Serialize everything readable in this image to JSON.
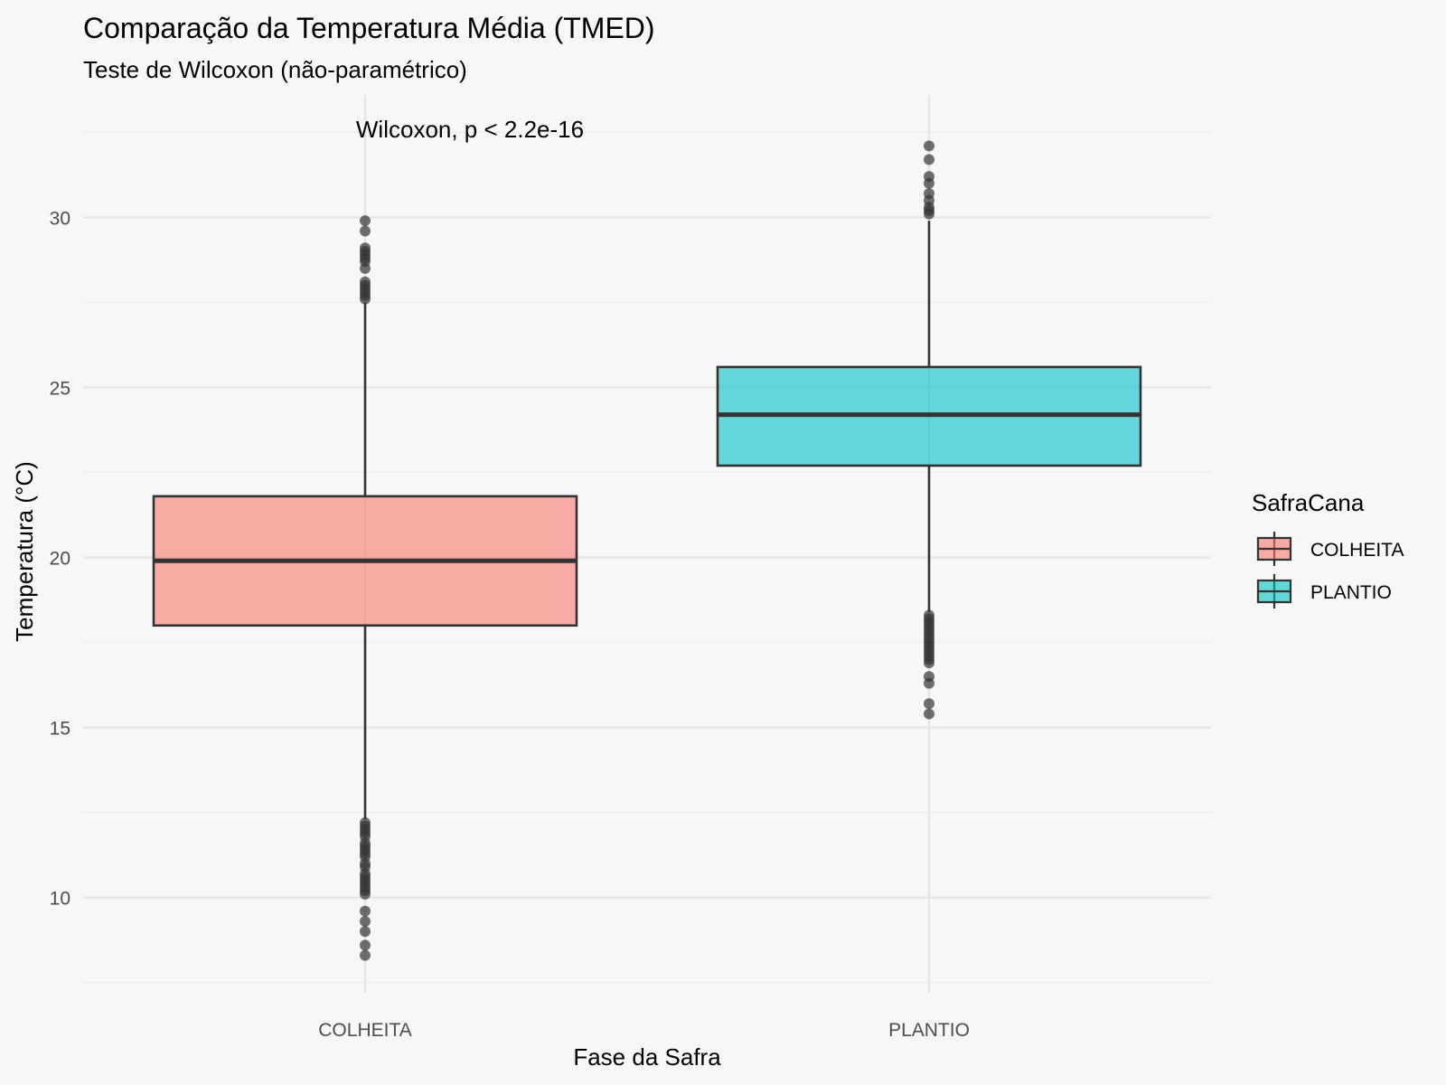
{
  "chart_data": {
    "type": "boxplot",
    "title": "Comparação da Temperatura Média (TMED)",
    "subtitle": "Teste de Wilcoxon (não-paramétrico)",
    "annotation": "Wilcoxon, p < 2.2e-16",
    "xlabel": "Fase da Safra",
    "ylabel": "Temperatura (°C)",
    "ylim": [
      7.2,
      33.6
    ],
    "yticks": [
      10,
      15,
      20,
      25,
      30
    ],
    "grid": true,
    "legend": {
      "title": "SafraCana",
      "position": "right",
      "entries": [
        "COLHEITA",
        "PLANTIO"
      ]
    },
    "categories": [
      "COLHEITA",
      "PLANTIO"
    ],
    "series": [
      {
        "name": "COLHEITA",
        "color": "#f8766d",
        "q1": 18.0,
        "median": 19.9,
        "q3": 21.8,
        "whisker_low": 12.3,
        "whisker_high": 27.5,
        "outliers": [
          29.9,
          29.6,
          29.1,
          29.0,
          28.9,
          28.8,
          28.7,
          28.5,
          28.1,
          28.0,
          27.9,
          27.8,
          27.7,
          27.6,
          12.2,
          12.1,
          12.0,
          11.9,
          11.8,
          11.6,
          11.5,
          11.4,
          11.3,
          11.2,
          11.0,
          10.9,
          10.7,
          10.6,
          10.5,
          10.4,
          10.3,
          10.2,
          10.1,
          9.6,
          9.3,
          9.0,
          8.6,
          8.3
        ]
      },
      {
        "name": "PLANTIO",
        "color": "#00bfc4",
        "q1": 22.7,
        "median": 24.2,
        "q3": 25.6,
        "whisker_low": 18.4,
        "whisker_high": 29.9,
        "outliers": [
          32.1,
          31.7,
          31.2,
          31.0,
          30.7,
          30.5,
          30.3,
          30.2,
          30.1,
          18.3,
          18.2,
          18.1,
          18.0,
          17.9,
          17.8,
          17.7,
          17.6,
          17.5,
          17.4,
          17.3,
          17.2,
          17.1,
          17.0,
          16.9,
          16.5,
          16.3,
          15.7,
          15.4
        ]
      }
    ]
  }
}
